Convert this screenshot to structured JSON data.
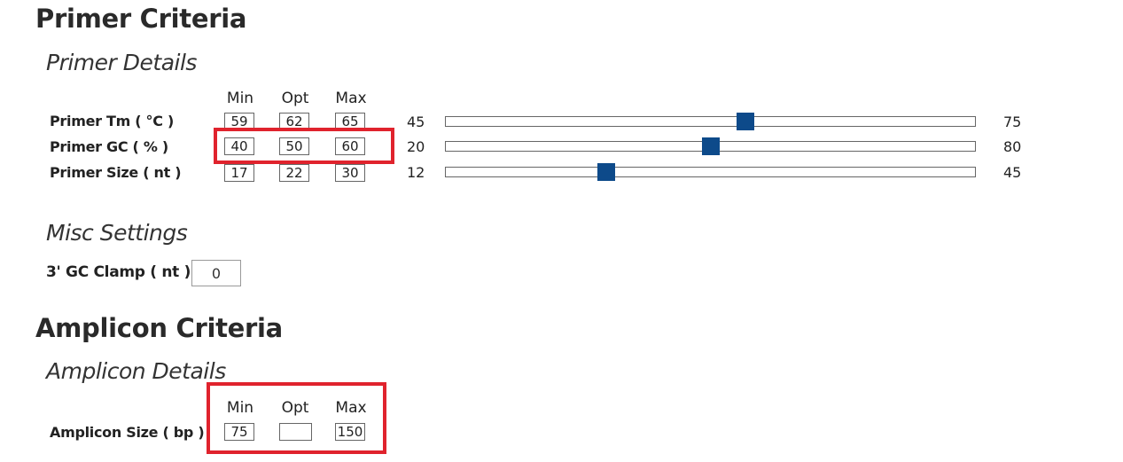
{
  "primer_criteria": {
    "title": "Primer Criteria",
    "details_title": "Primer Details",
    "columns": {
      "min": "Min",
      "opt": "Opt",
      "max": "Max"
    },
    "rows": [
      {
        "label": "Primer Tm ( °C )",
        "min": "59",
        "opt": "62",
        "max": "65",
        "slider_min": "45",
        "slider_max": "75",
        "slider_value": 62
      },
      {
        "label": "Primer GC ( % )",
        "min": "40",
        "opt": "50",
        "max": "60",
        "slider_min": "20",
        "slider_max": "80",
        "slider_value": 50
      },
      {
        "label": "Primer Size ( nt )",
        "min": "17",
        "opt": "22",
        "max": "30",
        "slider_min": "12",
        "slider_max": "45",
        "slider_value": 22
      }
    ],
    "misc_title": "Misc Settings",
    "gc_clamp": {
      "label": "3' GC Clamp ( nt )",
      "value": "0"
    }
  },
  "amplicon_criteria": {
    "title": "Amplicon Criteria",
    "details_title": "Amplicon Details",
    "columns": {
      "min": "Min",
      "opt": "Opt",
      "max": "Max"
    },
    "row": {
      "label": "Amplicon Size ( bp )",
      "min": "75",
      "opt": "",
      "max": "150"
    }
  },
  "colors": {
    "slider_thumb": "#0d4a8a",
    "highlight": "#e0232d"
  }
}
